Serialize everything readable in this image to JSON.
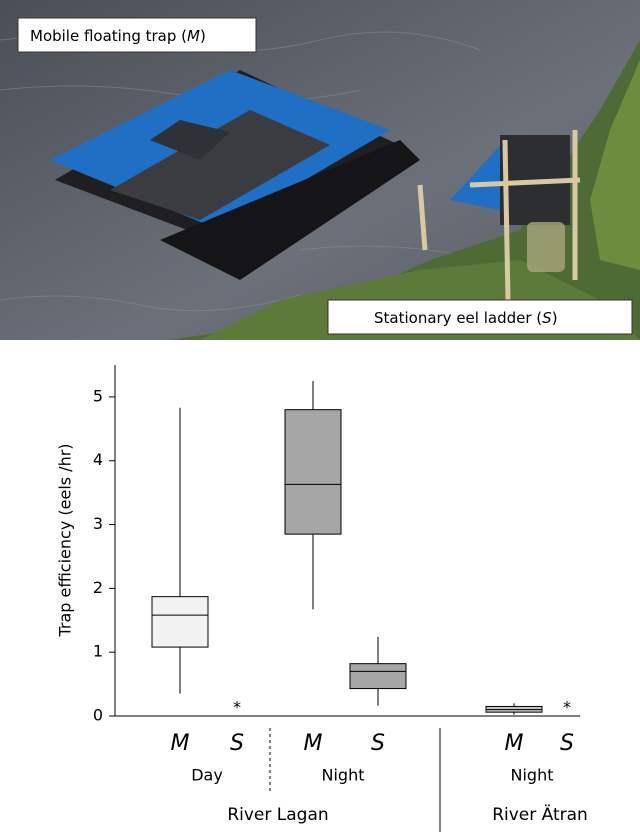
{
  "photo": {
    "labels": [
      {
        "text": "Mobile floating trap (",
        "symbol": "M",
        "suffix": ")"
      },
      {
        "text": "Stationary eel ladder (",
        "symbol": "S",
        "suffix": ")"
      }
    ]
  },
  "chart_data": {
    "type": "box",
    "ylabel": "Trap efficiency (eels /hr)",
    "ylim": [
      0,
      5.5
    ],
    "yticks": [
      0,
      1,
      2,
      3,
      4,
      5
    ],
    "categories": [
      "M",
      "S",
      "M",
      "S",
      "M",
      "S"
    ],
    "conditions": [
      "Day",
      "Night",
      "Night"
    ],
    "rivers": [
      "River Lagan",
      "River Ätran"
    ],
    "boxes": [
      {
        "min": 0.35,
        "q1": 1.08,
        "median": 1.58,
        "q3": 1.87,
        "max": 4.83,
        "color": "#f2f2f2"
      },
      {
        "label": "*"
      },
      {
        "min": 1.67,
        "q1": 2.85,
        "median": 3.63,
        "q3": 4.8,
        "max": 5.25,
        "color": "#a6a6a6"
      },
      {
        "min": 0.16,
        "q1": 0.43,
        "median": 0.7,
        "q3": 0.82,
        "max": 1.24,
        "color": "#a6a6a6"
      },
      {
        "min": 0.02,
        "q1": 0.06,
        "median": 0.1,
        "q3": 0.15,
        "max": 0.2,
        "color": "#bfbfbf"
      },
      {
        "label": "*"
      }
    ]
  }
}
